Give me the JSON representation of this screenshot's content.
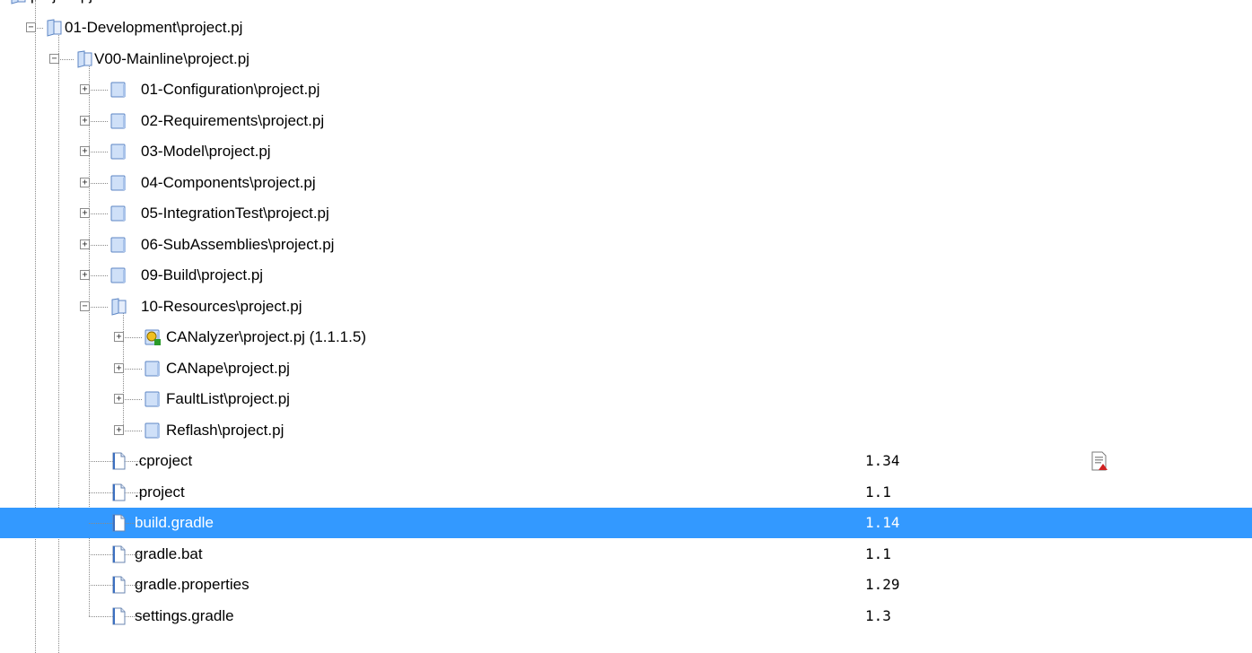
{
  "tree": {
    "partial_top_label": "project.pj",
    "items": [
      {
        "label": "01-Development\\project.pj",
        "level": 0,
        "type": "folder-open",
        "expander": "minus"
      },
      {
        "label": "V00-Mainline\\project.pj",
        "level": 1,
        "type": "folder-open",
        "expander": "minus"
      },
      {
        "label": "01-Configuration\\project.pj",
        "level": 2,
        "type": "folder",
        "expander": "plus"
      },
      {
        "label": "02-Requirements\\project.pj",
        "level": 2,
        "type": "folder",
        "expander": "plus"
      },
      {
        "label": "03-Model\\project.pj",
        "level": 2,
        "type": "folder",
        "expander": "plus"
      },
      {
        "label": "04-Components\\project.pj",
        "level": 2,
        "type": "folder",
        "expander": "plus"
      },
      {
        "label": "05-IntegrationTest\\project.pj",
        "level": 2,
        "type": "folder",
        "expander": "plus"
      },
      {
        "label": "06-SubAssemblies\\project.pj",
        "level": 2,
        "type": "folder",
        "expander": "plus"
      },
      {
        "label": "09-Build\\project.pj",
        "level": 2,
        "type": "folder",
        "expander": "plus"
      },
      {
        "label": "10-Resources\\project.pj",
        "level": 2,
        "type": "folder-open",
        "expander": "minus"
      },
      {
        "label": "CANalyzer\\project.pj (1.1.1.5)",
        "level": 3,
        "type": "shared-folder",
        "expander": "plus"
      },
      {
        "label": "CANape\\project.pj",
        "level": 3,
        "type": "folder",
        "expander": "plus"
      },
      {
        "label": "FaultList\\project.pj",
        "level": 3,
        "type": "folder",
        "expander": "plus"
      },
      {
        "label": "Reflash\\project.pj",
        "level": 3,
        "type": "folder",
        "expander": "plus"
      },
      {
        "label": ".cproject",
        "level": 3,
        "type": "file",
        "revision": "1.34",
        "status_icon": "file-modified-icon"
      },
      {
        "label": ".project",
        "level": 3,
        "type": "file",
        "revision": "1.1"
      },
      {
        "label": "build.gradle",
        "level": 3,
        "type": "file",
        "revision": "1.14",
        "selected": true
      },
      {
        "label": "gradle.bat",
        "level": 3,
        "type": "file",
        "revision": "1.1"
      },
      {
        "label": "gradle.properties",
        "level": 3,
        "type": "file",
        "revision": "1.29"
      },
      {
        "label": "settings.gradle",
        "level": 3,
        "type": "file",
        "revision": "1.3"
      }
    ]
  },
  "colors": {
    "selection": "#3399ff",
    "folder_fill": "#cfe0f8",
    "folder_stroke": "#5d86c4",
    "tree_lines": "#8a8a8a"
  }
}
